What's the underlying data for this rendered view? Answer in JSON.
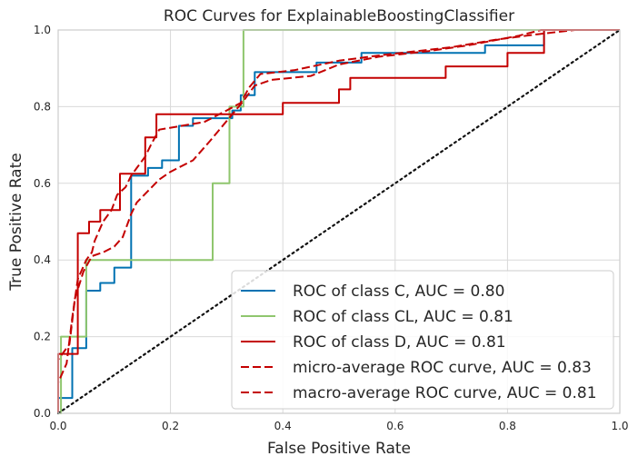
{
  "chart_data": {
    "type": "line",
    "title": "ROC Curves for ExplainableBoostingClassifier",
    "xlabel": "False Positive Rate",
    "ylabel": "True Positive Rate",
    "xlim": [
      0,
      1
    ],
    "ylim": [
      0,
      1
    ],
    "xticks": [
      "0.0",
      "0.2",
      "0.4",
      "0.6",
      "0.8",
      "1.0"
    ],
    "yticks": [
      "0.0",
      "0.2",
      "0.4",
      "0.6",
      "0.8",
      "1.0"
    ],
    "grid": true,
    "legend_position": "lower-right",
    "series": [
      {
        "name": "ROC of class C, AUC = 0.80",
        "color": "#0072b2",
        "dash": "solid",
        "points": [
          [
            0,
            0
          ],
          [
            0,
            0.04
          ],
          [
            0.025,
            0.04
          ],
          [
            0.025,
            0.17
          ],
          [
            0.05,
            0.17
          ],
          [
            0.05,
            0.32
          ],
          [
            0.075,
            0.32
          ],
          [
            0.075,
            0.34
          ],
          [
            0.1,
            0.34
          ],
          [
            0.1,
            0.38
          ],
          [
            0.13,
            0.38
          ],
          [
            0.13,
            0.62
          ],
          [
            0.16,
            0.62
          ],
          [
            0.16,
            0.64
          ],
          [
            0.185,
            0.64
          ],
          [
            0.185,
            0.66
          ],
          [
            0.215,
            0.66
          ],
          [
            0.215,
            0.75
          ],
          [
            0.24,
            0.75
          ],
          [
            0.24,
            0.77
          ],
          [
            0.31,
            0.77
          ],
          [
            0.31,
            0.79
          ],
          [
            0.325,
            0.79
          ],
          [
            0.325,
            0.83
          ],
          [
            0.35,
            0.83
          ],
          [
            0.35,
            0.89
          ],
          [
            0.46,
            0.89
          ],
          [
            0.46,
            0.915
          ],
          [
            0.54,
            0.915
          ],
          [
            0.54,
            0.94
          ],
          [
            0.76,
            0.94
          ],
          [
            0.76,
            0.96
          ],
          [
            0.865,
            0.96
          ],
          [
            0.865,
            1
          ],
          [
            1,
            1
          ]
        ]
      },
      {
        "name": "ROC of class CL, AUC = 0.81",
        "color": "#8fc66e",
        "dash": "solid",
        "points": [
          [
            0,
            0
          ],
          [
            0.005,
            0
          ],
          [
            0.005,
            0.2
          ],
          [
            0.05,
            0.2
          ],
          [
            0.05,
            0.4
          ],
          [
            0.275,
            0.4
          ],
          [
            0.275,
            0.6
          ],
          [
            0.305,
            0.6
          ],
          [
            0.305,
            0.8
          ],
          [
            0.33,
            0.8
          ],
          [
            0.33,
            1
          ],
          [
            1,
            1
          ]
        ]
      },
      {
        "name": "ROC of class D, AUC = 0.81",
        "color": "#c40000",
        "dash": "solid",
        "points": [
          [
            0,
            0
          ],
          [
            0,
            0.155
          ],
          [
            0.035,
            0.155
          ],
          [
            0.035,
            0.47
          ],
          [
            0.055,
            0.47
          ],
          [
            0.055,
            0.5
          ],
          [
            0.075,
            0.5
          ],
          [
            0.075,
            0.53
          ],
          [
            0.11,
            0.53
          ],
          [
            0.11,
            0.625
          ],
          [
            0.13,
            0.625
          ],
          [
            0.13,
            0.625
          ],
          [
            0.155,
            0.625
          ],
          [
            0.155,
            0.72
          ],
          [
            0.175,
            0.72
          ],
          [
            0.175,
            0.78
          ],
          [
            0.4,
            0.78
          ],
          [
            0.4,
            0.81
          ],
          [
            0.5,
            0.81
          ],
          [
            0.5,
            0.845
          ],
          [
            0.52,
            0.845
          ],
          [
            0.52,
            0.875
          ],
          [
            0.69,
            0.875
          ],
          [
            0.69,
            0.905
          ],
          [
            0.8,
            0.905
          ],
          [
            0.8,
            0.94
          ],
          [
            0.865,
            0.94
          ],
          [
            0.865,
            1
          ],
          [
            1,
            1
          ]
        ]
      },
      {
        "name": "micro-average ROC curve, AUC = 0.83",
        "color": "#c40000",
        "dash": "dashed",
        "points": [
          [
            0,
            0
          ],
          [
            0,
            0.08
          ],
          [
            0.015,
            0.13
          ],
          [
            0.025,
            0.25
          ],
          [
            0.035,
            0.35
          ],
          [
            0.05,
            0.4
          ],
          [
            0.06,
            0.42
          ],
          [
            0.065,
            0.45
          ],
          [
            0.08,
            0.5
          ],
          [
            0.095,
            0.53
          ],
          [
            0.105,
            0.57
          ],
          [
            0.12,
            0.59
          ],
          [
            0.13,
            0.62
          ],
          [
            0.14,
            0.64
          ],
          [
            0.155,
            0.67
          ],
          [
            0.165,
            0.7
          ],
          [
            0.18,
            0.74
          ],
          [
            0.22,
            0.75
          ],
          [
            0.26,
            0.76
          ],
          [
            0.3,
            0.79
          ],
          [
            0.325,
            0.81
          ],
          [
            0.34,
            0.85
          ],
          [
            0.36,
            0.885
          ],
          [
            0.42,
            0.895
          ],
          [
            0.5,
            0.92
          ],
          [
            0.58,
            0.935
          ],
          [
            0.7,
            0.955
          ],
          [
            0.78,
            0.975
          ],
          [
            0.86,
            0.99
          ],
          [
            0.92,
            1
          ],
          [
            1,
            1
          ]
        ]
      },
      {
        "name": "macro-average ROC curve, AUC = 0.81",
        "color": "#c40000",
        "dash": "dashed",
        "points": [
          [
            0,
            0
          ],
          [
            0,
            0.14
          ],
          [
            0.02,
            0.18
          ],
          [
            0.03,
            0.3
          ],
          [
            0.045,
            0.37
          ],
          [
            0.06,
            0.41
          ],
          [
            0.08,
            0.42
          ],
          [
            0.1,
            0.435
          ],
          [
            0.115,
            0.46
          ],
          [
            0.13,
            0.52
          ],
          [
            0.14,
            0.55
          ],
          [
            0.16,
            0.58
          ],
          [
            0.18,
            0.61
          ],
          [
            0.2,
            0.63
          ],
          [
            0.24,
            0.66
          ],
          [
            0.27,
            0.71
          ],
          [
            0.31,
            0.78
          ],
          [
            0.33,
            0.815
          ],
          [
            0.35,
            0.855
          ],
          [
            0.38,
            0.87
          ],
          [
            0.45,
            0.88
          ],
          [
            0.5,
            0.91
          ],
          [
            0.57,
            0.93
          ],
          [
            0.66,
            0.945
          ],
          [
            0.73,
            0.96
          ],
          [
            0.82,
            0.985
          ],
          [
            0.86,
            1
          ],
          [
            1,
            1
          ]
        ]
      },
      {
        "name": "",
        "color": "#111111",
        "dash": "dotted",
        "points": [
          [
            0,
            0
          ],
          [
            1,
            1
          ]
        ]
      }
    ]
  }
}
